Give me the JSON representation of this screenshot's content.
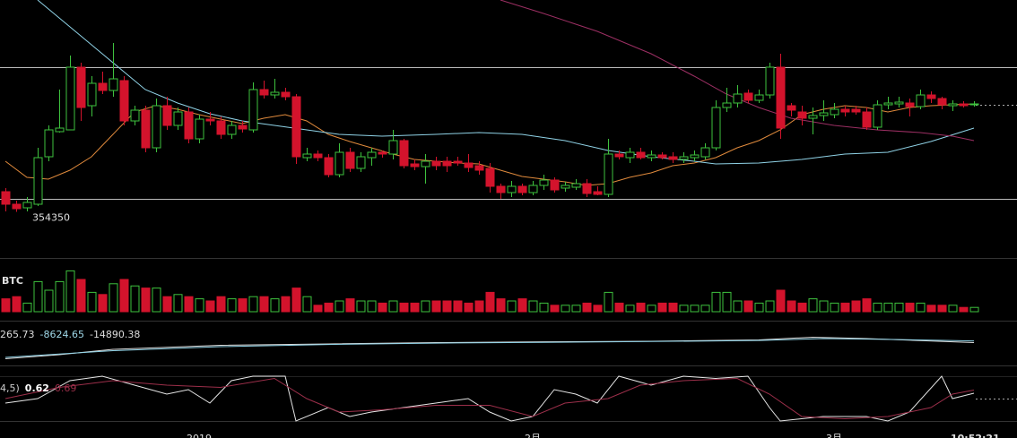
{
  "chart_data": [
    {
      "type": "candlestick",
      "categories": [
        null,
        null,
        null,
        null,
        null,
        null,
        null,
        null,
        null,
        null,
        null,
        null,
        null,
        null,
        null,
        null,
        null,
        null,
        "2019",
        null,
        null,
        null,
        null,
        null,
        null,
        null,
        null,
        null,
        null,
        null,
        null,
        null,
        null,
        null,
        null,
        null,
        null,
        null,
        null,
        null,
        null,
        null,
        null,
        null,
        null,
        null,
        null,
        null,
        null,
        "2月",
        null,
        null,
        null,
        null,
        null,
        null,
        null,
        null,
        null,
        null,
        null,
        null,
        null,
        null,
        null,
        null,
        null,
        null,
        null,
        null,
        null,
        null,
        null,
        null,
        null,
        null,
        null,
        "3月",
        null,
        null,
        null,
        null,
        null,
        null,
        null,
        null,
        null,
        null,
        null,
        null,
        null
      ],
      "open": [
        356600,
        355200,
        354800,
        355200,
        360500,
        363300,
        363500,
        370500,
        366200,
        368700,
        367900,
        369000,
        364500,
        365700,
        361500,
        366200,
        364000,
        365500,
        362500,
        364700,
        364500,
        363000,
        364000,
        363500,
        368000,
        367400,
        367700,
        367200,
        360400,
        360800,
        360400,
        358500,
        361000,
        359200,
        360400,
        361000,
        360800,
        362300,
        359700,
        359400,
        360000,
        360000,
        360000,
        359800,
        359500,
        359200,
        357200,
        356500,
        357200,
        356500,
        357300,
        357900,
        357000,
        357100,
        357500,
        356600,
        356300,
        360800,
        360400,
        361000,
        360400,
        360700,
        360500,
        360200,
        360400,
        360500,
        361500,
        366000,
        366500,
        367600,
        366800,
        367400,
        370500,
        366200,
        365500,
        364800,
        365100,
        365200,
        365800,
        365800,
        365500,
        363800,
        366300,
        366400,
        366500,
        366100,
        367400,
        367000,
        366200,
        366400,
        366300
      ],
      "high": [
        357000,
        355600,
        356000,
        361500,
        364000,
        368000,
        371800,
        371000,
        369500,
        370000,
        373200,
        369500,
        366200,
        366200,
        367000,
        367200,
        366000,
        366000,
        365200,
        365500,
        365000,
        364500,
        364500,
        368800,
        369000,
        369200,
        368200,
        367500,
        361500,
        361200,
        360800,
        362000,
        361500,
        361000,
        361500,
        361200,
        363500,
        362500,
        360200,
        360800,
        360500,
        360500,
        360500,
        360800,
        360000,
        359800,
        357500,
        357800,
        357500,
        357800,
        358500,
        358200,
        357700,
        358000,
        358000,
        357200,
        362500,
        361200,
        361500,
        361500,
        361200,
        361000,
        361000,
        361000,
        361200,
        362000,
        366800,
        368200,
        368500,
        368000,
        368000,
        371000,
        372000,
        366500,
        366200,
        366000,
        366800,
        366500,
        366200,
        366200,
        366000,
        366800,
        367200,
        367200,
        367000,
        368000,
        367800,
        367200,
        366800,
        366700,
        366700
      ],
      "low": [
        354400,
        354350,
        354400,
        355000,
        360000,
        363200,
        363500,
        364500,
        365000,
        367500,
        367200,
        364000,
        364000,
        361000,
        361000,
        363500,
        363500,
        362000,
        362000,
        364000,
        362500,
        362500,
        363200,
        363200,
        367000,
        367000,
        366800,
        359700,
        360000,
        360000,
        358200,
        358200,
        358800,
        358800,
        359500,
        360400,
        360200,
        359200,
        359000,
        357500,
        359000,
        358800,
        359500,
        358800,
        358500,
        356500,
        355800,
        356000,
        356200,
        356200,
        356800,
        356500,
        356600,
        356800,
        356000,
        356200,
        356000,
        360200,
        359800,
        360200,
        360000,
        360200,
        359800,
        359800,
        360000,
        360200,
        361200,
        365500,
        366000,
        366500,
        366500,
        367000,
        362500,
        365000,
        364000,
        363000,
        364500,
        364800,
        365000,
        365200,
        363500,
        363500,
        365800,
        366000,
        365000,
        365800,
        366500,
        365800,
        365600,
        366000,
        366100
      ],
      "close": [
        355200,
        354700,
        355400,
        360400,
        363500,
        363700,
        370500,
        366000,
        368700,
        367900,
        369200,
        364500,
        365700,
        361500,
        366200,
        364000,
        365500,
        362500,
        364700,
        364500,
        363000,
        364000,
        363600,
        368000,
        367400,
        367700,
        367200,
        360500,
        360800,
        360400,
        358500,
        361000,
        359200,
        360500,
        361000,
        360800,
        362300,
        359500,
        359400,
        360000,
        359500,
        359500,
        359800,
        359300,
        359000,
        357200,
        356500,
        357200,
        356500,
        357300,
        357900,
        356800,
        357300,
        357500,
        356400,
        356300,
        360800,
        360500,
        361000,
        360400,
        360700,
        360400,
        360200,
        360500,
        360700,
        361500,
        366000,
        366500,
        367500,
        366800,
        367400,
        370500,
        363700,
        365700,
        364800,
        365100,
        365400,
        365800,
        365500,
        365500,
        363800,
        366300,
        366500,
        366600,
        366100,
        367400,
        367000,
        366300,
        366400,
        366200,
        366400
      ],
      "up_color": "#3ec23e",
      "down_color": "#d3132c",
      "ylim": [
        349000,
        378000
      ],
      "min_label": 354350,
      "time": "10:52:21",
      "lines": [
        {
          "color": "#e08a3c",
          "x": [
            0,
            2,
            4,
            6,
            8,
            10,
            12,
            14,
            16,
            18,
            20,
            22,
            24,
            26,
            28,
            30,
            32,
            34,
            36,
            38,
            40,
            42,
            44,
            46,
            48,
            50,
            52,
            54,
            56,
            58,
            60,
            62,
            64,
            66,
            68,
            70,
            72,
            74,
            76,
            78,
            80,
            82,
            84,
            86,
            88,
            90
          ],
          "values": [
            360000,
            358200,
            358000,
            359000,
            360500,
            363000,
            365500,
            366200,
            365800,
            365200,
            364700,
            364200,
            364800,
            365200,
            364500,
            363000,
            362200,
            361500,
            360800,
            360200,
            360000,
            359800,
            359700,
            359000,
            358300,
            358000,
            357700,
            357300,
            357500,
            358200,
            358700,
            359500,
            359800,
            360400,
            361500,
            362300,
            363500,
            365200,
            365800,
            366200,
            366000,
            365500,
            366000,
            366200,
            366300,
            366400
          ]
        },
        {
          "color": "#8fd2e6",
          "x": [
            3,
            6,
            9,
            11,
            13,
            16,
            19,
            22,
            25,
            28,
            31,
            35,
            40,
            44,
            48,
            52,
            56,
            60,
            64,
            66,
            70,
            74,
            78,
            82,
            86,
            90
          ],
          "values": [
            378000,
            375000,
            372000,
            370000,
            368000,
            366500,
            365300,
            364500,
            364000,
            363500,
            363000,
            362800,
            363000,
            363200,
            363000,
            362300,
            361200,
            360500,
            360000,
            359700,
            359800,
            360200,
            360800,
            361000,
            362200,
            363700
          ]
        },
        {
          "color": "#9c2f63",
          "x": [
            46,
            50,
            55,
            60,
            64,
            67,
            70,
            73,
            77,
            81,
            85,
            88,
            90
          ],
          "values": [
            378000,
            376500,
            374500,
            372000,
            369500,
            367500,
            366000,
            364800,
            364000,
            363500,
            363200,
            362800,
            362300
          ]
        }
      ]
    },
    {
      "type": "bar",
      "title": "BTC",
      "ylim": [
        0,
        40
      ],
      "values": [
        12,
        14,
        8,
        28,
        20,
        28,
        38,
        30,
        18,
        16,
        26,
        30,
        24,
        22,
        22,
        14,
        16,
        14,
        12,
        10,
        14,
        12,
        12,
        14,
        14,
        12,
        14,
        22,
        14,
        6,
        8,
        10,
        12,
        10,
        10,
        8,
        10,
        8,
        8,
        10,
        10,
        10,
        10,
        8,
        10,
        18,
        12,
        10,
        12,
        10,
        8,
        6,
        6,
        6,
        8,
        6,
        18,
        8,
        6,
        8,
        6,
        8,
        8,
        6,
        6,
        6,
        18,
        18,
        10,
        10,
        8,
        10,
        20,
        10,
        8,
        12,
        10,
        8,
        8,
        10,
        12,
        8,
        8,
        8,
        8,
        8,
        6,
        6,
        6,
        4,
        4
      ]
    },
    {
      "type": "line",
      "readouts": [
        265.73,
        -8624.65,
        -14890.38
      ],
      "ylim": [
        -100000,
        60000
      ],
      "series": [
        {
          "color": "#dddddd",
          "x": [
            0,
            5,
            10,
            20,
            30,
            40,
            50,
            60,
            70,
            75,
            80,
            90
          ],
          "values": [
            -75000,
            -60000,
            -40000,
            -25000,
            -20000,
            -15000,
            -12000,
            -10000,
            -5000,
            5000,
            0,
            -14890.38
          ]
        },
        {
          "color": "#8fd2e6",
          "x": [
            0,
            10,
            20,
            30,
            40,
            50,
            60,
            70,
            76,
            82,
            90
          ],
          "values": [
            -70000,
            -45000,
            -30000,
            -22000,
            -17000,
            -14000,
            -11000,
            -7000,
            0,
            -3000,
            -8624.65
          ]
        }
      ]
    },
    {
      "type": "line",
      "prefix": "4,5)",
      "readouts": [
        0.62,
        0.69
      ],
      "ylim": [
        0,
        1
      ],
      "series": [
        {
          "color": "#e6e6e6",
          "x": [
            0,
            3,
            6,
            9,
            12,
            15,
            17,
            19,
            21,
            23,
            26,
            27,
            30,
            32,
            34,
            37,
            40,
            43,
            45,
            47,
            49,
            51,
            53,
            55,
            57,
            60,
            63,
            66,
            69,
            71,
            72,
            76,
            80,
            82,
            84,
            87,
            88,
            90
          ],
          "values": [
            0.4,
            0.5,
            0.9,
            1,
            0.8,
            0.6,
            0.7,
            0.4,
            0.9,
            1,
            1,
            0,
            0.3,
            0.1,
            0.2,
            0.3,
            0.4,
            0.5,
            0.2,
            0,
            0.1,
            0.7,
            0.6,
            0.4,
            1,
            0.8,
            1,
            0.95,
            1,
            0.3,
            0,
            0.1,
            0.1,
            0,
            0.2,
            1,
            0.5,
            0.62
          ]
        },
        {
          "color": "#9c2f4a",
          "x": [
            0,
            5,
            10,
            15,
            20,
            25,
            28,
            31,
            35,
            40,
            45,
            49,
            52,
            56,
            59,
            63,
            68,
            71,
            74,
            78,
            82,
            86,
            88,
            90
          ],
          "values": [
            0.5,
            0.75,
            0.9,
            0.8,
            0.75,
            0.95,
            0.5,
            0.2,
            0.25,
            0.35,
            0.35,
            0.1,
            0.4,
            0.5,
            0.8,
            0.9,
            0.95,
            0.6,
            0.1,
            0.05,
            0.1,
            0.3,
            0.6,
            0.69
          ]
        }
      ]
    }
  ]
}
